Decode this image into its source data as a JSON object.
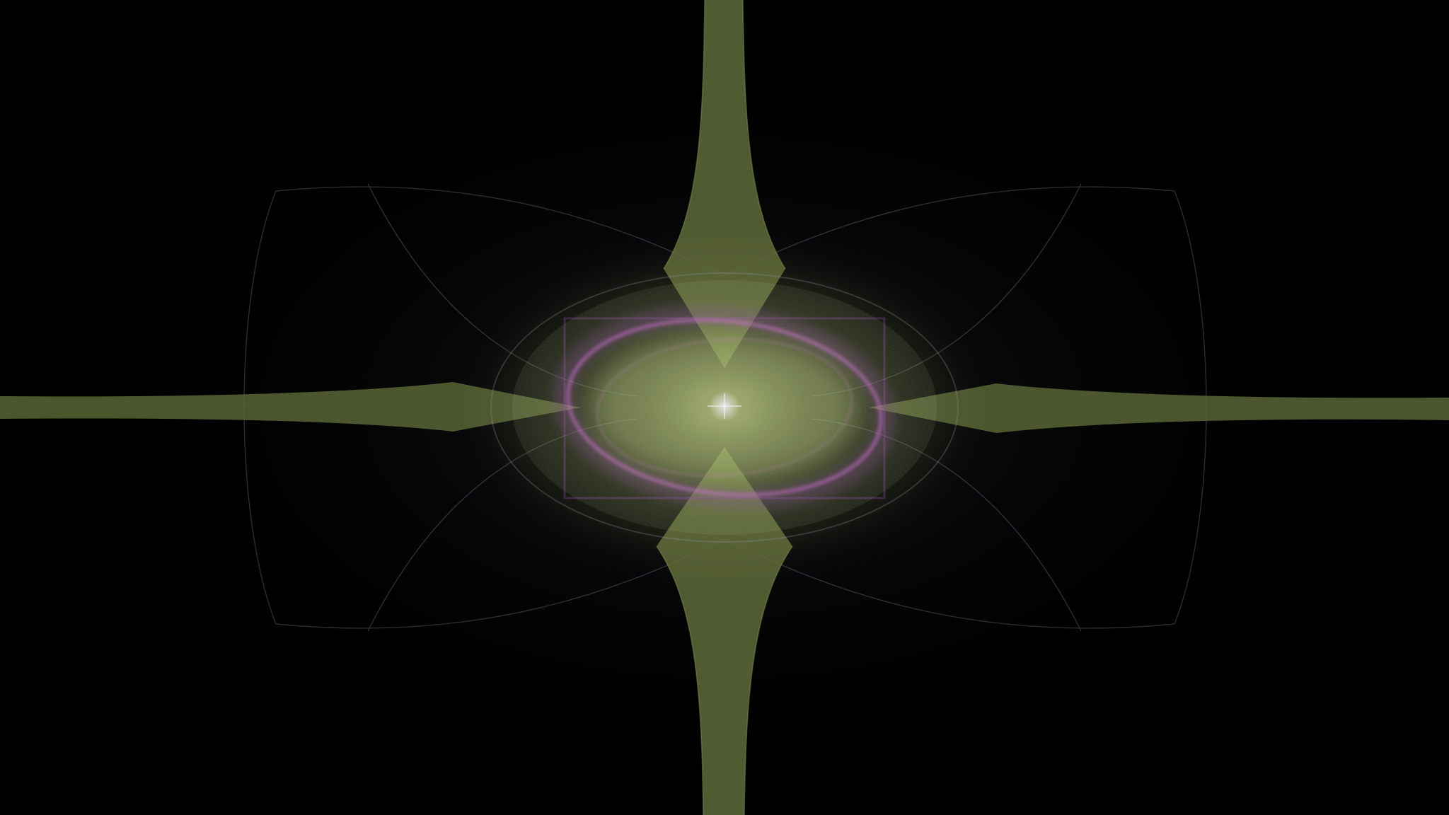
{
  "image": {
    "subject": "fractal-flame-four-point-star",
    "colors": {
      "background": "#000000",
      "core": "#c8d88a",
      "glow": "#7f8f4a",
      "arm": "#5f6b3a",
      "arm_edge": "#8c9a5a",
      "ring": "#c060c8",
      "ring_soft": "#8a4aa0",
      "veil": "#9aa0b8",
      "sparkle": "#f4f4ff"
    }
  }
}
